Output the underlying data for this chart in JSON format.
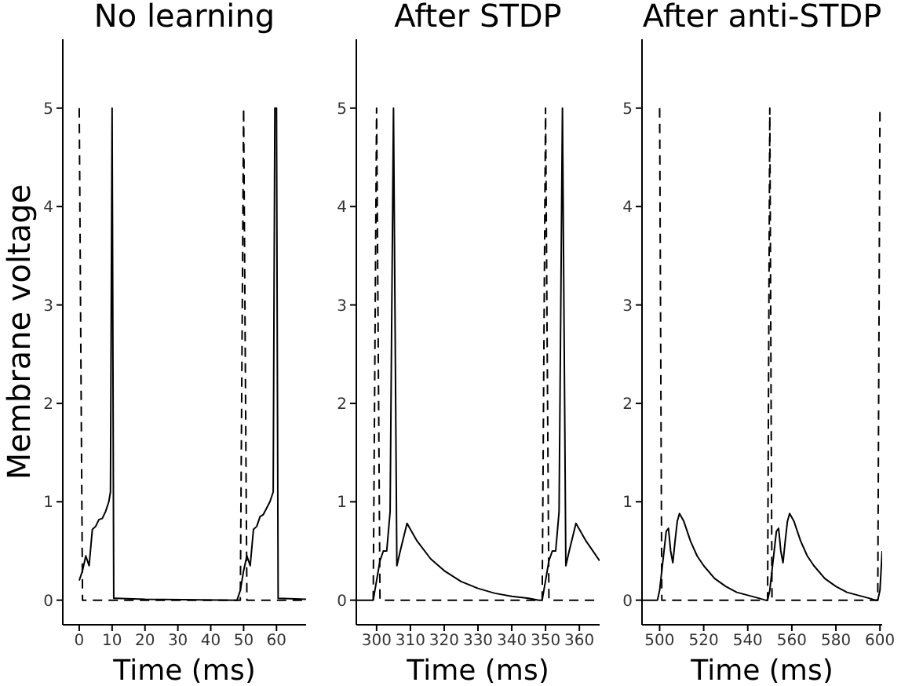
{
  "chart_data": [
    {
      "type": "line",
      "title": "No learning",
      "xlabel": "Time (ms)",
      "ylabel": "Membrane voltage",
      "xlim": [
        -5,
        69
      ],
      "xticks": [
        0,
        10,
        20,
        30,
        40,
        50,
        60
      ],
      "ylim": [
        -0.25,
        5.7
      ],
      "yticks": [
        0,
        1,
        2,
        3,
        4,
        5
      ],
      "grid": false,
      "legend": false,
      "marker": "none",
      "series": [
        {
          "color": "#000000",
          "line_style": "solid",
          "x": [
            0,
            1,
            2,
            3,
            4,
            5,
            6,
            7,
            8,
            9,
            9.5,
            10,
            10.5,
            11,
            20,
            48,
            49,
            50,
            51,
            52,
            53,
            54,
            55,
            56,
            58,
            59,
            59.5,
            60,
            60.5,
            69
          ],
          "values": [
            0.2,
            0.3,
            0.45,
            0.35,
            0.72,
            0.75,
            0.82,
            0.83,
            0.9,
            1.0,
            1.1,
            5,
            0.02,
            0.02,
            0.01,
            0,
            0.1,
            0.3,
            0.45,
            0.35,
            0.72,
            0.75,
            0.85,
            0.87,
            1.0,
            1.1,
            5,
            5,
            0.02,
            0.01
          ]
        },
        {
          "color": "#000000",
          "line_style": "dashed",
          "x": [
            0,
            1,
            49,
            50,
            51,
            69
          ],
          "values": [
            5,
            0,
            0,
            5,
            0,
            0
          ]
        }
      ]
    },
    {
      "type": "line",
      "title": "After STDP",
      "xlabel": "Time (ms)",
      "xlim": [
        294,
        366
      ],
      "xticks": [
        300,
        310,
        320,
        330,
        340,
        350,
        360
      ],
      "ylim": [
        -0.25,
        5.7
      ],
      "yticks": [
        0,
        1,
        2,
        3,
        4,
        5
      ],
      "grid": false,
      "legend": false,
      "marker": "none",
      "series": [
        {
          "color": "#000000",
          "line_style": "solid",
          "x": [
            294,
            299,
            300,
            301,
            302,
            303,
            304,
            305,
            306,
            307,
            309,
            312,
            316,
            320,
            325,
            330,
            335,
            340,
            345,
            348,
            349,
            350,
            351,
            352,
            353,
            354,
            355,
            356,
            357,
            359,
            362,
            366
          ],
          "values": [
            0,
            0,
            0.2,
            0.4,
            0.5,
            0.5,
            0.9,
            5,
            0.35,
            0.5,
            0.78,
            0.6,
            0.42,
            0.3,
            0.19,
            0.12,
            0.07,
            0.04,
            0.02,
            0,
            0,
            0.2,
            0.4,
            0.5,
            0.5,
            0.9,
            5,
            0.35,
            0.5,
            0.78,
            0.6,
            0.4
          ]
        },
        {
          "color": "#000000",
          "line_style": "dashed",
          "x": [
            299,
            300,
            301,
            349,
            350,
            351,
            366
          ],
          "values": [
            0,
            5,
            0,
            0,
            5,
            0,
            0
          ]
        }
      ]
    },
    {
      "type": "line",
      "title": "After anti-STDP",
      "xlabel": "Time (ms)",
      "xlim": [
        492,
        601
      ],
      "xticks": [
        500,
        520,
        540,
        560,
        580,
        600
      ],
      "ylim": [
        -0.25,
        5.7
      ],
      "yticks": [
        0,
        1,
        2,
        3,
        4,
        5
      ],
      "grid": false,
      "legend": false,
      "marker": "none",
      "series": [
        {
          "color": "#000000",
          "line_style": "solid",
          "x": [
            492,
            499,
            500,
            502,
            503,
            504,
            505,
            506,
            507,
            508,
            509,
            511,
            514,
            517,
            520,
            525,
            530,
            535,
            540,
            545,
            548,
            549,
            550,
            552,
            553,
            554,
            555,
            556,
            557,
            558,
            559,
            561,
            564,
            567,
            570,
            575,
            580,
            585,
            590,
            595,
            598,
            599,
            600,
            601
          ],
          "values": [
            0,
            0,
            0.1,
            0.5,
            0.7,
            0.73,
            0.5,
            0.38,
            0.6,
            0.8,
            0.88,
            0.8,
            0.6,
            0.45,
            0.35,
            0.22,
            0.14,
            0.08,
            0.05,
            0.02,
            0,
            0,
            0.1,
            0.5,
            0.7,
            0.73,
            0.5,
            0.38,
            0.6,
            0.8,
            0.88,
            0.8,
            0.6,
            0.45,
            0.35,
            0.22,
            0.14,
            0.08,
            0.05,
            0.02,
            0,
            0,
            0.1,
            0.5
          ]
        },
        {
          "color": "#000000",
          "line_style": "dashed",
          "x": [
            500,
            501,
            549,
            550,
            551,
            599,
            600
          ],
          "values": [
            5,
            0,
            0,
            5,
            0,
            0,
            5
          ]
        }
      ]
    }
  ]
}
